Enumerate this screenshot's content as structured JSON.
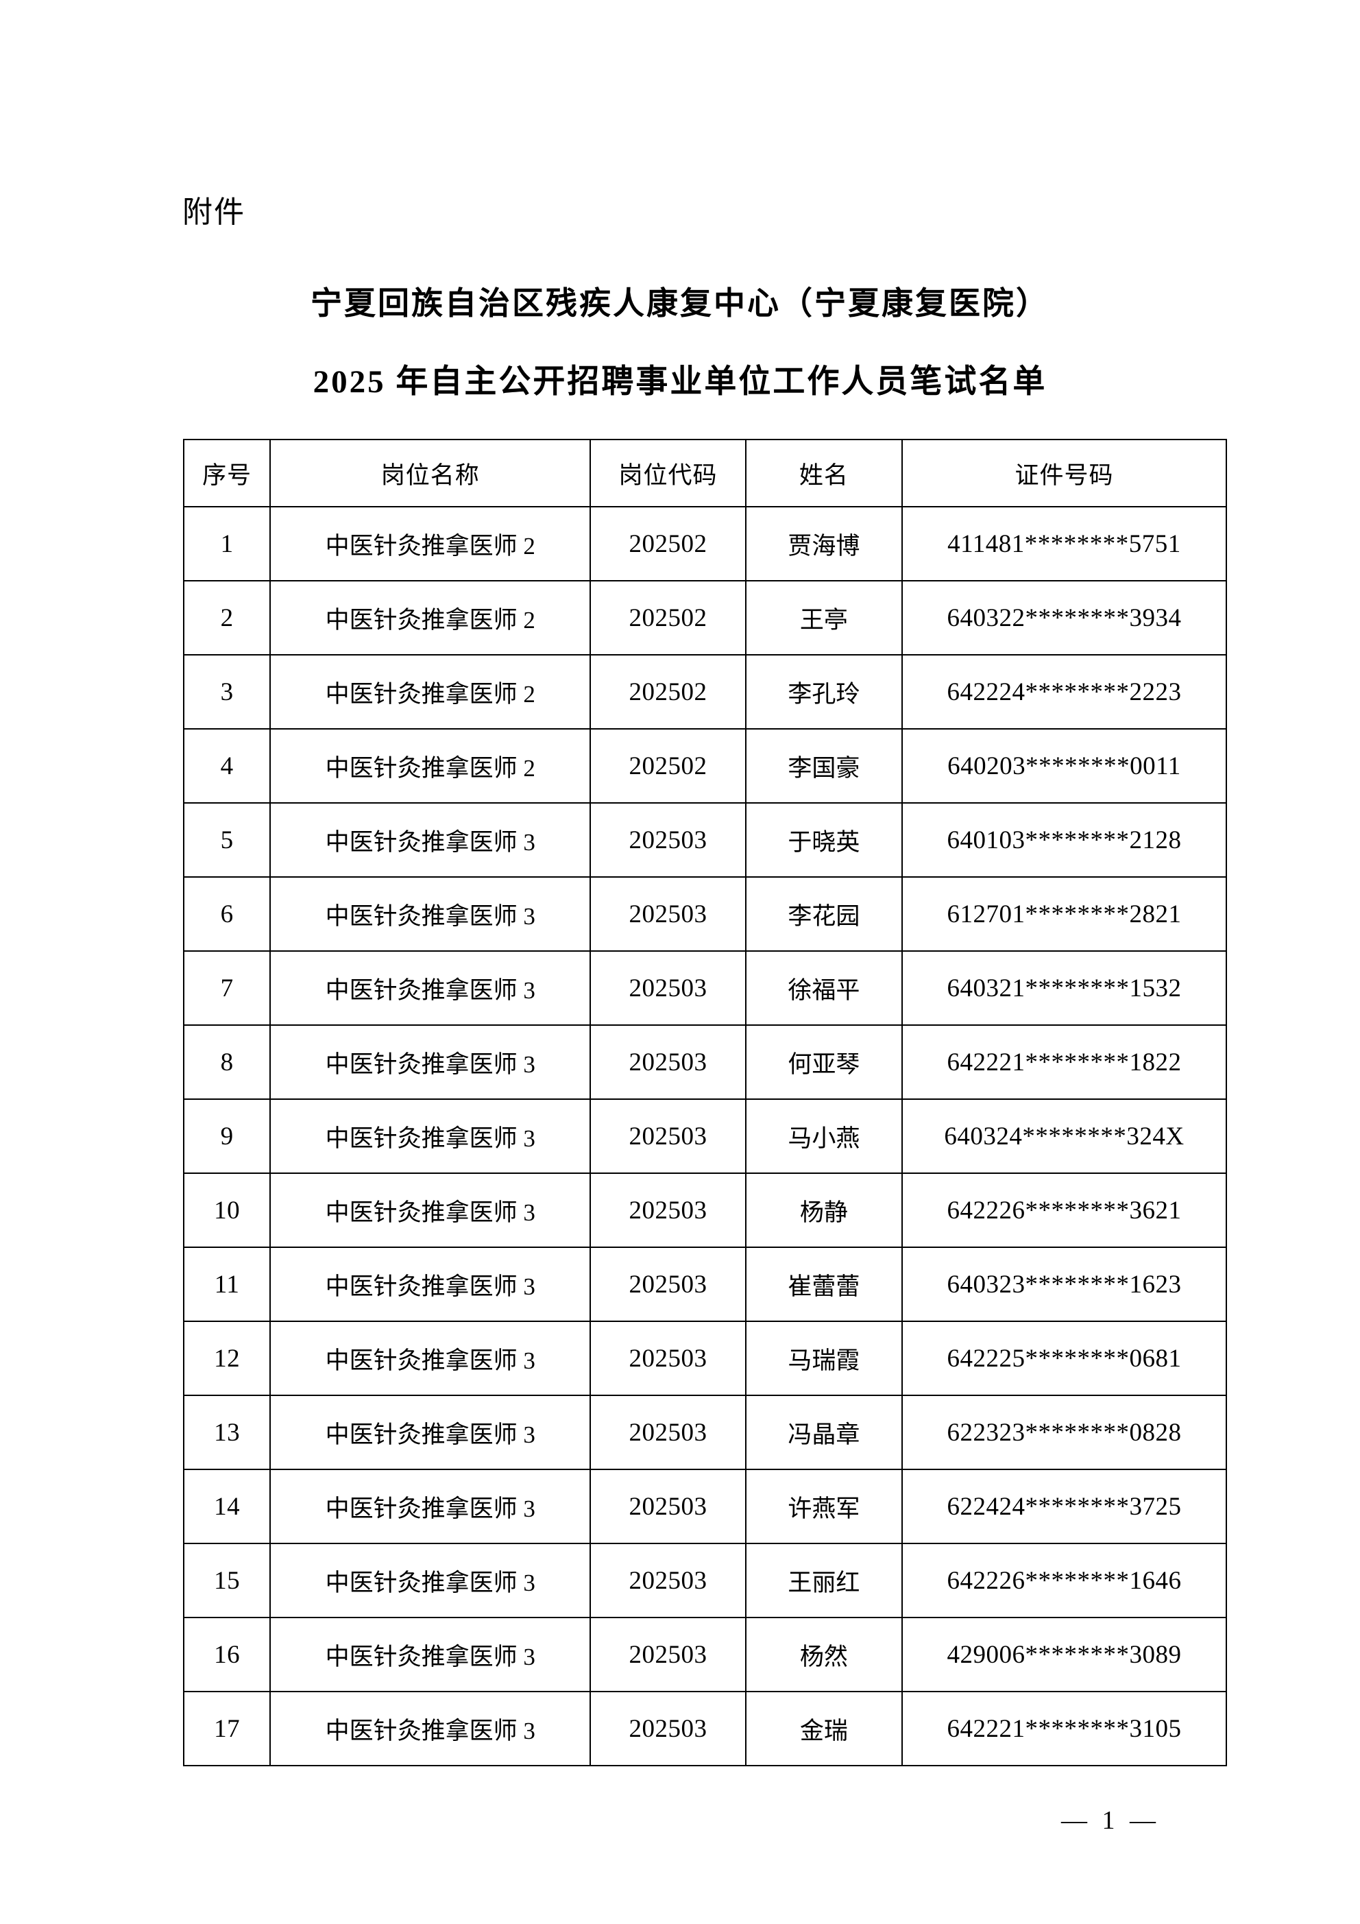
{
  "page": {
    "attachment_label": "附件",
    "title_line1": "宁夏回族自治区残疾人康复中心（宁夏康复医院）",
    "title_line2": "2025 年自主公开招聘事业单位工作人员笔试名单",
    "page_number": "— 1 —"
  },
  "table": {
    "headers": [
      "序号",
      "岗位名称",
      "岗位代码",
      "姓名",
      "证件号码"
    ],
    "column_keys": [
      "index",
      "position-name",
      "position-code",
      "name",
      "id-number"
    ],
    "rows": [
      [
        "1",
        "中医针灸推拿医师 2",
        "202502",
        "贾海博",
        "411481********5751"
      ],
      [
        "2",
        "中医针灸推拿医师 2",
        "202502",
        "王亭",
        "640322********3934"
      ],
      [
        "3",
        "中医针灸推拿医师 2",
        "202502",
        "李孔玲",
        "642224********2223"
      ],
      [
        "4",
        "中医针灸推拿医师 2",
        "202502",
        "李国豪",
        "640203********0011"
      ],
      [
        "5",
        "中医针灸推拿医师 3",
        "202503",
        "于晓英",
        "640103********2128"
      ],
      [
        "6",
        "中医针灸推拿医师 3",
        "202503",
        "李花园",
        "612701********2821"
      ],
      [
        "7",
        "中医针灸推拿医师 3",
        "202503",
        "徐福平",
        "640321********1532"
      ],
      [
        "8",
        "中医针灸推拿医师 3",
        "202503",
        "何亚琴",
        "642221********1822"
      ],
      [
        "9",
        "中医针灸推拿医师 3",
        "202503",
        "马小燕",
        "640324********324X"
      ],
      [
        "10",
        "中医针灸推拿医师 3",
        "202503",
        "杨静",
        "642226********3621"
      ],
      [
        "11",
        "中医针灸推拿医师 3",
        "202503",
        "崔蕾蕾",
        "640323********1623"
      ],
      [
        "12",
        "中医针灸推拿医师 3",
        "202503",
        "马瑞霞",
        "642225********0681"
      ],
      [
        "13",
        "中医针灸推拿医师 3",
        "202503",
        "冯晶章",
        "622323********0828"
      ],
      [
        "14",
        "中医针灸推拿医师 3",
        "202503",
        "许燕军",
        "622424********3725"
      ],
      [
        "15",
        "中医针灸推拿医师 3",
        "202503",
        "王丽红",
        "642226********1646"
      ],
      [
        "16",
        "中医针灸推拿医师 3",
        "202503",
        "杨然",
        "429006********3089"
      ],
      [
        "17",
        "中医针灸推拿医师 3",
        "202503",
        "金瑞",
        "642221********3105"
      ]
    ]
  }
}
